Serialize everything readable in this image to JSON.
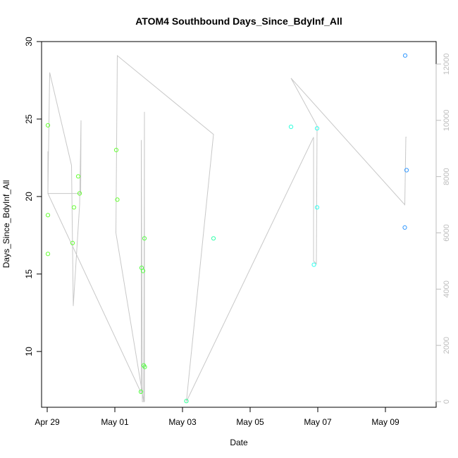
{
  "chart_data": {
    "type": "scatter",
    "title": "ATOM4 Southbound Days_Since_BdyInf_All",
    "xlabel": "Date",
    "ylabel": "Days_Since_BdyInf_All",
    "x_axis": {
      "type": "date",
      "range": [
        "2024-04-28T20:00",
        "2024-05-10T12:00"
      ],
      "ticks": [
        {
          "value": "2024-04-29",
          "label": "Apr 29"
        },
        {
          "value": "2024-05-01",
          "label": "May 01"
        },
        {
          "value": "2024-05-03",
          "label": "May 03"
        },
        {
          "value": "2024-05-05",
          "label": "May 05"
        },
        {
          "value": "2024-05-07",
          "label": "May 07"
        },
        {
          "value": "2024-05-09",
          "label": "May 09"
        }
      ]
    },
    "y_axis_left": {
      "range": [
        6.4,
        30
      ],
      "ticks": [
        10,
        15,
        20,
        25,
        30
      ]
    },
    "y_axis_right": {
      "range": [
        -200,
        12800
      ],
      "ticks": [
        0,
        2000,
        4000,
        6000,
        8000,
        10000,
        12000
      ],
      "color": "#bdbdbd"
    },
    "grid": false,
    "points": [
      {
        "x": "2024-04-29T00:30",
        "y": 24.6,
        "color": "#66ff33"
      },
      {
        "x": "2024-04-29T00:30",
        "y": 18.8,
        "color": "#66ff33"
      },
      {
        "x": "2024-04-29T00:30",
        "y": 16.3,
        "color": "#66ff33"
      },
      {
        "x": "2024-04-29T18:00",
        "y": 17.0,
        "color": "#66ff33"
      },
      {
        "x": "2024-04-29T19:00",
        "y": 19.3,
        "color": "#66ff33"
      },
      {
        "x": "2024-04-29T22:00",
        "y": 21.3,
        "color": "#66ff33"
      },
      {
        "x": "2024-04-29T23:00",
        "y": 20.2,
        "color": "#66ff33"
      },
      {
        "x": "2024-05-01T01:00",
        "y": 23.0,
        "color": "#66ff33"
      },
      {
        "x": "2024-05-01T01:45",
        "y": 19.8,
        "color": "#66ff33"
      },
      {
        "x": "2024-05-01T19:00",
        "y": 15.4,
        "color": "#55ff44"
      },
      {
        "x": "2024-05-01T20:00",
        "y": 15.2,
        "color": "#55ff44"
      },
      {
        "x": "2024-05-01T21:00",
        "y": 17.3,
        "color": "#55ff44"
      },
      {
        "x": "2024-05-01T20:30",
        "y": 9.1,
        "color": "#55ff44"
      },
      {
        "x": "2024-05-01T21:15",
        "y": 9.0,
        "color": "#55ff44"
      },
      {
        "x": "2024-05-01T18:30",
        "y": 7.4,
        "color": "#55ff44"
      },
      {
        "x": "2024-05-03T02:45",
        "y": 6.8,
        "color": "#33ff99"
      },
      {
        "x": "2024-05-03T22:00",
        "y": 17.3,
        "color": "#33ffaa"
      },
      {
        "x": "2024-05-06T05:00",
        "y": 24.5,
        "color": "#33ffdd"
      },
      {
        "x": "2024-05-06T21:15",
        "y": 15.6,
        "color": "#33ffee"
      },
      {
        "x": "2024-05-06T23:30",
        "y": 24.4,
        "color": "#33ffee"
      },
      {
        "x": "2024-05-06T23:30",
        "y": 19.3,
        "color": "#33ffee"
      },
      {
        "x": "2024-05-09T14:00",
        "y": 29.1,
        "color": "#3399ff"
      },
      {
        "x": "2024-05-09T13:45",
        "y": 18.0,
        "color": "#3399ff"
      },
      {
        "x": "2024-05-09T15:00",
        "y": 21.7,
        "color": "#3399ff"
      }
    ],
    "line_series": {
      "axis": "right",
      "color": "#c8c8c8",
      "points": [
        {
          "x": "2024-04-29T00:30",
          "y": 8900
        },
        {
          "x": "2024-04-29T00:30",
          "y": 7400
        },
        {
          "x": "2024-04-29T01:45",
          "y": 11700
        },
        {
          "x": "2024-04-29T17:15",
          "y": 8400
        },
        {
          "x": "2024-04-29T18:30",
          "y": 3400
        },
        {
          "x": "2024-04-29T23:00",
          "y": 7000
        },
        {
          "x": "2024-04-30T00:00",
          "y": 10000
        },
        {
          "x": "2024-04-29T23:45",
          "y": 7400
        },
        {
          "x": "2024-04-29T00:30",
          "y": 7400
        },
        {
          "x": "2024-05-01T18:45",
          "y": 300
        },
        {
          "x": "2024-05-01T18:45",
          "y": 9300
        },
        {
          "x": "2024-05-01T19:30",
          "y": 0
        },
        {
          "x": "2024-05-01T21:00",
          "y": 0
        },
        {
          "x": "2024-05-01T21:00",
          "y": 10300
        },
        {
          "x": "2024-05-01T20:30",
          "y": 0
        },
        {
          "x": "2024-05-01T00:45",
          "y": 6000
        },
        {
          "x": "2024-05-01T01:45",
          "y": 12300
        },
        {
          "x": "2024-05-03T22:00",
          "y": 9500
        },
        {
          "x": "2024-05-03T02:45",
          "y": 0
        },
        {
          "x": "2024-05-06T21:00",
          "y": 9400
        },
        {
          "x": "2024-05-06T21:00",
          "y": 5000
        },
        {
          "x": "2024-05-06T23:00",
          "y": 4900
        },
        {
          "x": "2024-05-06T23:30",
          "y": 9800
        },
        {
          "x": "2024-05-06T05:00",
          "y": 11500
        },
        {
          "x": "2024-05-09T13:45",
          "y": 7000
        },
        {
          "x": "2024-05-09T14:30",
          "y": 9400
        },
        {
          "x": "2024-05-09T15:00",
          "y": 9400
        }
      ]
    }
  }
}
